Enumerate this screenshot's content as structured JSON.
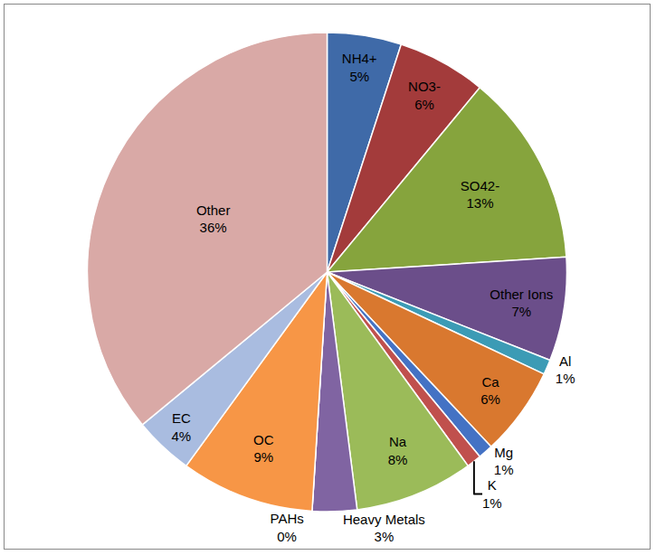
{
  "chart_data": {
    "type": "pie",
    "categories": [
      "NH4+",
      "NO3-",
      "SO42-",
      "Other Ions",
      "Al",
      "Ca",
      "Mg",
      "K",
      "Na",
      "Heavy Metals",
      "PAHs",
      "OC",
      "EC",
      "Other"
    ],
    "values": [
      5,
      6,
      13,
      7,
      1,
      6,
      1,
      1,
      8,
      3,
      0,
      9,
      4,
      36
    ],
    "value_labels": [
      "5%",
      "6%",
      "13%",
      "7%",
      "1%",
      "6%",
      "1%",
      "1%",
      "8%",
      "3%",
      "0%",
      "9%",
      "4%",
      "36%"
    ],
    "colors": [
      "#3f6aa8",
      "#a33b3b",
      "#86a43d",
      "#6b4e8a",
      "#3c9bb5",
      "#d9782f",
      "#4472c4",
      "#c0504d",
      "#9bbb59",
      "#8064a2",
      "#4bacc6",
      "#f79646",
      "#a9bce0",
      "#d9a9a6"
    ],
    "data_labels": true,
    "legend": "none"
  }
}
